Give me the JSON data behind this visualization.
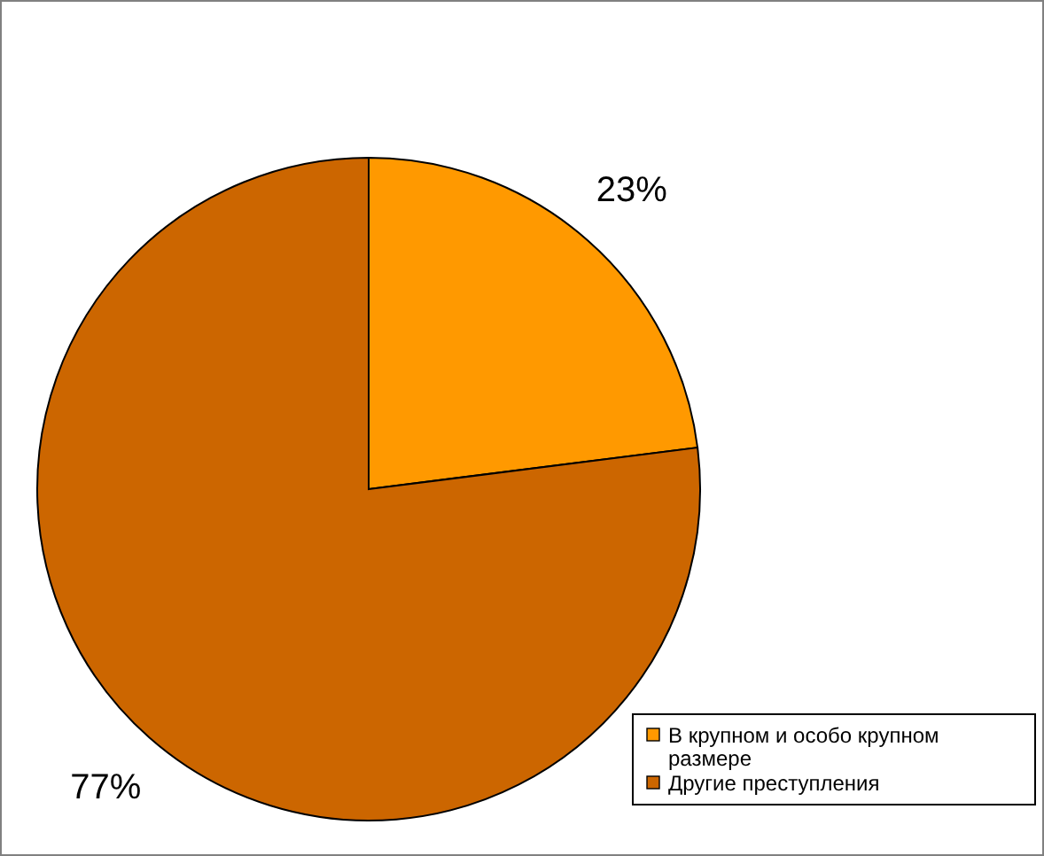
{
  "chart_data": {
    "type": "pie",
    "categories": [
      "В крупном и особо крупном размере",
      "Другие преступления"
    ],
    "values": [
      23,
      77
    ],
    "colors": [
      "#ff9900",
      "#cc6600"
    ],
    "value_labels": [
      "23%",
      "77%"
    ],
    "legend": "bottom right"
  }
}
